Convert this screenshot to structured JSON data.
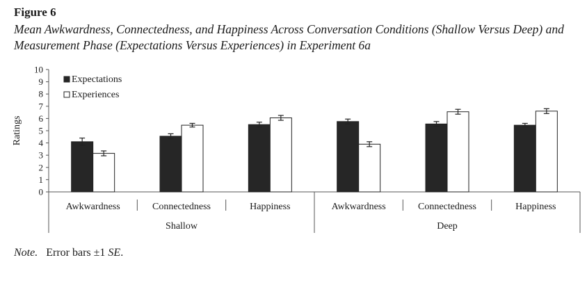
{
  "figure_label": "Figure 6",
  "caption": "Mean Awkwardness, Connectedness, and Happiness Across Conversation Conditions (Shallow Versus Deep) and Measurement Phase (Expectations Versus Experiences) in Experiment 6a",
  "note": {
    "label": "Note.",
    "text_before": "Error bars ±1 ",
    "text_se": "SE",
    "text_after": "."
  },
  "chart_data": {
    "type": "bar",
    "ylabel": "Ratings",
    "ylim": [
      0,
      10
    ],
    "yticks": [
      "0",
      "1",
      "2",
      "3",
      "4",
      "5",
      "6",
      "7",
      "8",
      "9",
      "10"
    ],
    "groups": [
      "Shallow",
      "Deep"
    ],
    "categories": [
      "Awkwardness",
      "Connectedness",
      "Happiness",
      "Awkwardness",
      "Connectedness",
      "Happiness"
    ],
    "legend_position": "top-left",
    "series": [
      {
        "name": "Expectations",
        "color": "#262626",
        "values": [
          4.1,
          4.55,
          5.5,
          5.75,
          5.55,
          5.45
        ],
        "errors": [
          0.3,
          0.2,
          0.2,
          0.2,
          0.2,
          0.15
        ]
      },
      {
        "name": "Experiences",
        "color": "#ffffff",
        "values": [
          3.15,
          5.45,
          6.05,
          3.9,
          6.55,
          6.6
        ],
        "errors": [
          0.2,
          0.15,
          0.2,
          0.2,
          0.2,
          0.2
        ]
      }
    ]
  }
}
